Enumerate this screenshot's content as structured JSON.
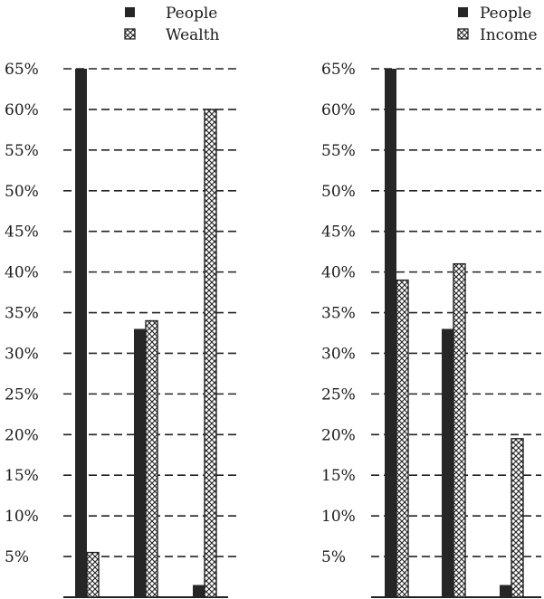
{
  "chart_data": [
    {
      "type": "bar",
      "title": "",
      "xlabel": "",
      "ylabel": "",
      "ylim": [
        0,
        65
      ],
      "yticks": [
        "5%",
        "10%",
        "15%",
        "20%",
        "25%",
        "30%",
        "35%",
        "40%",
        "45%",
        "50%",
        "55%",
        "60%",
        "65%"
      ],
      "grid": true,
      "legend_position": "top-right",
      "categories": [
        "",
        "",
        ""
      ],
      "series": [
        {
          "name": "People",
          "values": [
            65,
            33,
            1.5
          ],
          "pattern": "solid",
          "color": "#262626"
        },
        {
          "name": "Wealth",
          "values": [
            5.5,
            34,
            60
          ],
          "pattern": "crosshatch",
          "color": "#222222"
        }
      ]
    },
    {
      "type": "bar",
      "title": "",
      "xlabel": "",
      "ylabel": "",
      "ylim": [
        0,
        65
      ],
      "yticks": [
        "5%",
        "10%",
        "15%",
        "20%",
        "25%",
        "30%",
        "35%",
        "40%",
        "45%",
        "50%",
        "55%",
        "60%",
        "65%"
      ],
      "grid": true,
      "legend_position": "top-right",
      "categories": [
        "",
        "",
        ""
      ],
      "series": [
        {
          "name": "People",
          "values": [
            65,
            33,
            1.5
          ],
          "pattern": "solid",
          "color": "#262626"
        },
        {
          "name": "Income",
          "values": [
            39,
            41,
            19.5
          ],
          "pattern": "crosshatch",
          "color": "#222222"
        }
      ]
    }
  ]
}
